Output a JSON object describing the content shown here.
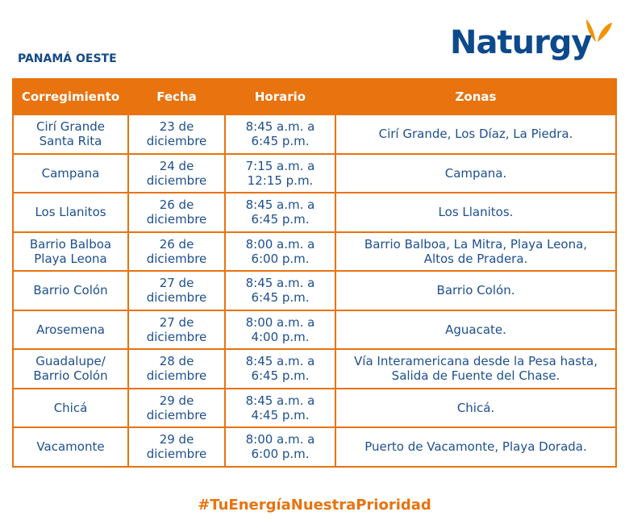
{
  "header": {
    "region": "PANAMÁ OESTE",
    "logo": "Naturgy"
  },
  "table": {
    "columns": [
      "Corregimiento",
      "Fecha",
      "Horario",
      "Zonas"
    ],
    "rows": [
      [
        [
          "Cirí Grande",
          "Santa Rita"
        ],
        [
          "23 de",
          "diciembre"
        ],
        [
          "8:45 a.m. a",
          "6:45 p.m."
        ],
        [
          "Cirí Grande, Los Díaz, La Piedra."
        ]
      ],
      [
        [
          "Campana"
        ],
        [
          "24 de",
          "diciembre"
        ],
        [
          "7:15 a.m. a",
          "12:15 p.m."
        ],
        [
          "Campana."
        ]
      ],
      [
        [
          "Los Llanitos"
        ],
        [
          "26 de",
          "diciembre"
        ],
        [
          "8:45 a.m. a",
          "6:45 p.m."
        ],
        [
          "Los Llanitos."
        ]
      ],
      [
        [
          "Barrio Balboa",
          "Playa Leona"
        ],
        [
          "26 de",
          "diciembre"
        ],
        [
          "8:00 a.m. a",
          "6:00 p.m."
        ],
        [
          "Barrio Balboa, La Mitra, Playa Leona,",
          "Altos de Pradera."
        ]
      ],
      [
        [
          "Barrio Colón"
        ],
        [
          "27 de",
          "diciembre"
        ],
        [
          "8:45 a.m. a",
          "6:45 p.m."
        ],
        [
          "Barrio Colón."
        ]
      ],
      [
        [
          "Arosemena"
        ],
        [
          "27 de",
          "diciembre"
        ],
        [
          "8:00 a.m. a",
          "4:00 p.m."
        ],
        [
          "Aguacate."
        ]
      ],
      [
        [
          "Guadalupe/",
          "Barrio Colón"
        ],
        [
          "28 de",
          "diciembre"
        ],
        [
          "8:45 a.m. a",
          "6:45 p.m."
        ],
        [
          "Vía Interamericana desde la Pesa hasta,",
          "Salida de Fuente del Chase."
        ]
      ],
      [
        [
          "Chicá"
        ],
        [
          "29 de",
          "diciembre"
        ],
        [
          "8:45 a.m. a",
          "4:45 p.m."
        ],
        [
          "Chicá."
        ]
      ],
      [
        [
          "Vacamonte"
        ],
        [
          "29 de",
          "diciembre"
        ],
        [
          "8:00 a.m. a",
          "6:00 p.m."
        ],
        [
          "Puerto de Vacamonte, Playa Dorada."
        ]
      ]
    ]
  },
  "footer": {
    "hashtag": "#TuEnergíaNuestraPrioridad"
  }
}
